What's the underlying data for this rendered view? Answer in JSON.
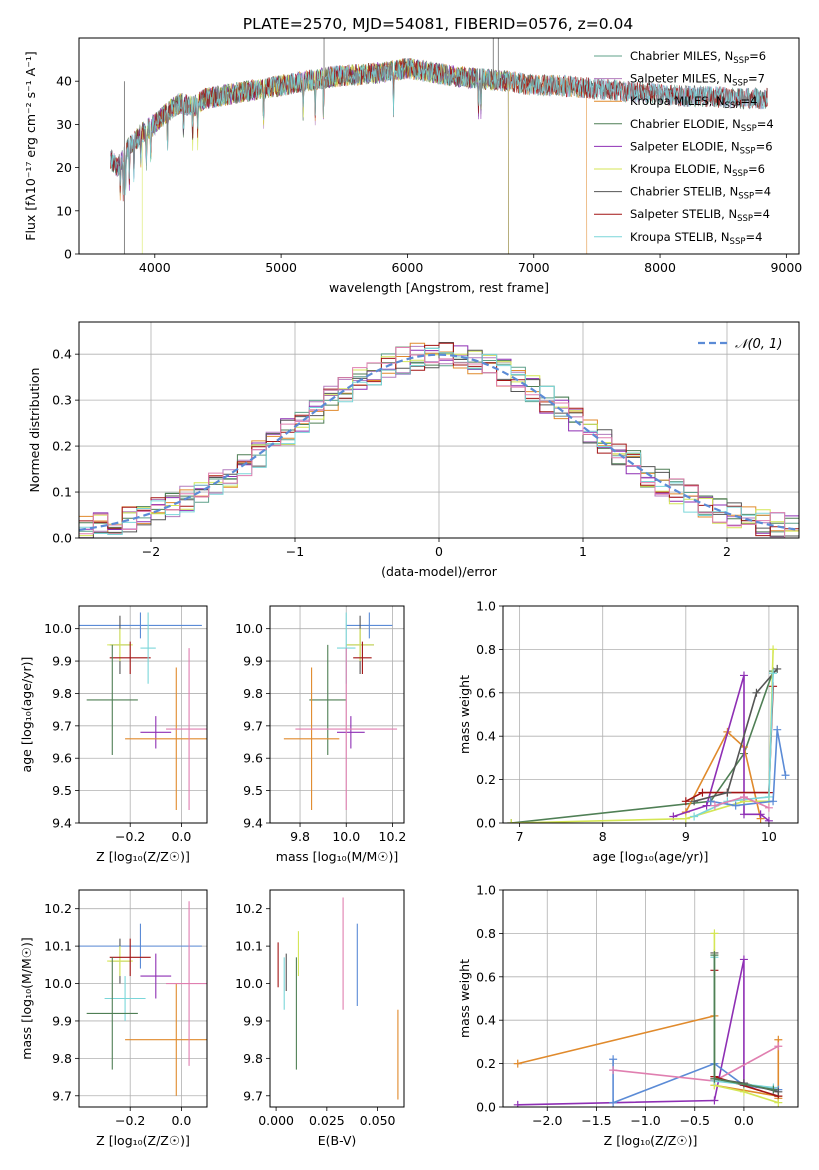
{
  "figure_title": "PLATE=2570, MJD=54081, FIBERID=0576, z=0.04",
  "colors": {
    "chabrier_miles": "#5fa08a",
    "salpeter_miles": "#b37bbd",
    "kroupa_miles": "#e08a2c",
    "chabrier_elodie": "#4f7f55",
    "salpeter_elodie": "#8e2fb4",
    "kroupa_elodie": "#d4e655",
    "chabrier_stelib": "#555555",
    "salpeter_stelib": "#a21414",
    "kroupa_stelib": "#7ad6d9",
    "gaussian": "#5b8bd6",
    "extra_pink": "#e07fb0",
    "extra_blue": "#5b8bd6"
  },
  "chart_data": [
    {
      "id": "spectrum",
      "type": "line",
      "xlabel": "wavelength [Angstrom, rest frame]",
      "ylabel": "Flux [fλ10⁻¹⁷ erg cm⁻² s⁻¹ A⁻¹]",
      "xlim": [
        3400,
        9100
      ],
      "ylim": [
        0,
        50
      ],
      "xticks": [
        "4000",
        "5000",
        "6000",
        "7000",
        "8000",
        "9000"
      ],
      "yticks": [
        "0",
        "10",
        "20",
        "30",
        "40"
      ],
      "legend": [
        {
          "base": "Chabrier MILES, N",
          "sub": "SSP",
          "tail": "=6"
        },
        {
          "base": "Salpeter MILES, N",
          "sub": "SSP",
          "tail": "=7"
        },
        {
          "base": "Kroupa MILES, N",
          "sub": "SSP",
          "tail": "=4"
        },
        {
          "base": "Chabrier ELODIE, N",
          "sub": "SSP",
          "tail": "=4"
        },
        {
          "base": "Salpeter ELODIE, N",
          "sub": "SSP",
          "tail": "=6"
        },
        {
          "base": "Kroupa ELODIE, N",
          "sub": "SSP",
          "tail": "=6"
        },
        {
          "base": "Chabrier STELIB, N",
          "sub": "SSP",
          "tail": "=4"
        },
        {
          "base": "Salpeter STELIB, N",
          "sub": "SSP",
          "tail": "=4"
        },
        {
          "base": "Kroupa STELIB, N",
          "sub": "SSP",
          "tail": "=4"
        }
      ],
      "legend_loc": "right",
      "continuum": {
        "x": [
          3650,
          3700,
          3800,
          3900,
          4000,
          4100,
          4200,
          4300,
          4400,
          4600,
          4800,
          5000,
          5200,
          5400,
          5600,
          5800,
          6000,
          6200,
          6400,
          6600,
          6800,
          7000,
          7200,
          7400,
          7600,
          7800,
          8000,
          8200,
          8400,
          8600,
          8850
        ],
        "y": [
          22,
          20,
          25,
          28,
          30,
          33,
          35,
          34,
          36,
          37,
          38,
          39,
          40,
          41,
          41.5,
          42,
          43,
          42,
          41,
          40.5,
          40,
          39,
          39,
          38.5,
          38,
          37.5,
          37,
          36.5,
          36.5,
          36,
          36
        ]
      },
      "wavelength_ranges": [
        {
          "series": "chabrier_miles",
          "x": [
            3650,
            8850
          ]
        },
        {
          "series": "salpeter_miles",
          "x": [
            3650,
            8850
          ]
        },
        {
          "series": "kroupa_miles",
          "x": [
            3650,
            7420
          ]
        },
        {
          "series": "chabrier_elodie",
          "x": [
            3650,
            6800
          ]
        },
        {
          "series": "salpeter_elodie",
          "x": [
            3650,
            6800
          ]
        },
        {
          "series": "kroupa_elodie",
          "x": [
            3900,
            6800
          ]
        },
        {
          "series": "chabrier_stelib",
          "x": [
            3650,
            8850
          ]
        },
        {
          "series": "salpeter_stelib",
          "x": [
            3650,
            8850
          ]
        },
        {
          "series": "kroupa_stelib",
          "x": [
            3650,
            8850
          ]
        }
      ]
    },
    {
      "id": "residuals",
      "type": "histogram",
      "xlabel": "(data-model)/error",
      "ylabel": "Normed distribution",
      "xlim": [
        -2.5,
        2.5
      ],
      "ylim": [
        0,
        0.47
      ],
      "xticks": [
        "−2",
        "−1",
        "0",
        "1",
        "2"
      ],
      "yticks": [
        "0.0",
        "0.1",
        "0.2",
        "0.3",
        "0.4"
      ],
      "grid": true,
      "legend": "𝒩(0, 1)",
      "legend_loc": "top-right",
      "bin_width": 0.1
    },
    {
      "id": "age_vs_Z",
      "type": "scatter",
      "xlabel": "Z [log₁₀(Z/Z☉)]",
      "ylabel": "age  [log₁₀(age/yr)]",
      "xlim": [
        -0.4,
        0.1
      ],
      "ylim": [
        9.4,
        10.07
      ],
      "xticks": [
        "−0.2",
        "0.0"
      ],
      "yticks": [
        "9.4",
        "9.5",
        "9.6",
        "9.7",
        "9.8",
        "9.9",
        "10.0"
      ],
      "grid": true,
      "points": [
        {
          "series": "extra_blue",
          "x": -0.16,
          "y": 10.01,
          "xerr": 0.24,
          "yerr": 0.04
        },
        {
          "series": "chabrier_stelib",
          "x": -0.24,
          "y": 9.95,
          "xerr": 0.04,
          "yerr": 0.09
        },
        {
          "series": "kroupa_elodie",
          "x": -0.24,
          "y": 9.95,
          "xerr": 0.05,
          "yerr": 0.05
        },
        {
          "series": "salpeter_stelib",
          "x": -0.2,
          "y": 9.91,
          "xerr": 0.08,
          "yerr": 0.05
        },
        {
          "series": "kroupa_stelib",
          "x": -0.13,
          "y": 9.94,
          "xerr": 0.03,
          "yerr": 0.11
        },
        {
          "series": "salpeter_elodie",
          "x": -0.1,
          "y": 9.68,
          "xerr": 0.06,
          "yerr": 0.05
        },
        {
          "series": "chabrier_elodie",
          "x": -0.27,
          "y": 9.78,
          "xerr": 0.1,
          "yerr": 0.17
        },
        {
          "series": "kroupa_miles",
          "x": -0.02,
          "y": 9.66,
          "xerr": 0.2,
          "yerr": 0.22
        },
        {
          "series": "extra_pink",
          "x": 0.03,
          "y": 9.69,
          "xerr": 0.09,
          "yerr": 0.25
        }
      ]
    },
    {
      "id": "age_vs_mass",
      "type": "scatter",
      "xlabel": "mass [log₁₀(M/M☉)]",
      "ylabel": "",
      "xlim": [
        9.67,
        10.25
      ],
      "ylim": [
        9.4,
        10.07
      ],
      "xticks": [
        "9.8",
        "10.0",
        "10.2"
      ],
      "yticks": [
        "9.4",
        "9.5",
        "9.6",
        "9.7",
        "9.8",
        "9.9",
        "10.0"
      ],
      "grid": true,
      "points": [
        {
          "series": "extra_blue",
          "x": 10.1,
          "y": 10.01,
          "xerr": 0.1,
          "yerr": 0.04
        },
        {
          "series": "chabrier_stelib",
          "x": 10.06,
          "y": 9.95,
          "xerr": 0.06,
          "yerr": 0.09
        },
        {
          "series": "kroupa_elodie",
          "x": 10.06,
          "y": 9.95,
          "xerr": 0.06,
          "yerr": 0.05
        },
        {
          "series": "salpeter_stelib",
          "x": 10.07,
          "y": 9.91,
          "xerr": 0.04,
          "yerr": 0.05
        },
        {
          "series": "kroupa_stelib",
          "x": 10.0,
          "y": 9.94,
          "xerr": 0.04,
          "yerr": 0.11
        },
        {
          "series": "salpeter_elodie",
          "x": 10.02,
          "y": 9.68,
          "xerr": 0.06,
          "yerr": 0.05
        },
        {
          "series": "chabrier_elodie",
          "x": 9.92,
          "y": 9.78,
          "xerr": 0.08,
          "yerr": 0.17
        },
        {
          "series": "kroupa_miles",
          "x": 9.85,
          "y": 9.66,
          "xerr": 0.12,
          "yerr": 0.22
        },
        {
          "series": "extra_pink",
          "x": 10.0,
          "y": 9.69,
          "xerr": 0.22,
          "yerr": 0.25
        }
      ]
    },
    {
      "id": "mass_weight_vs_age",
      "type": "line",
      "xlabel": "age  [log₁₀(age/yr)]",
      "ylabel": "mass weight",
      "xlim": [
        6.8,
        10.35
      ],
      "ylim": [
        0,
        1.0
      ],
      "xticks": [
        "7",
        "8",
        "9",
        "10"
      ],
      "yticks": [
        "0.0",
        "0.2",
        "0.4",
        "0.6",
        "0.8",
        "1.0"
      ],
      "grid": true,
      "series": [
        {
          "series": "chabrier_elodie",
          "x": [
            6.9,
            9.3,
            9.7,
            10.05
          ],
          "y": [
            0.0,
            0.1,
            0.32,
            0.7
          ]
        },
        {
          "series": "kroupa_miles",
          "x": [
            9.0,
            9.5,
            9.7,
            9.9
          ],
          "y": [
            0.05,
            0.42,
            0.35,
            0.02
          ]
        },
        {
          "series": "salpeter_elodie",
          "x": [
            8.85,
            9.25,
            9.7,
            9.7,
            9.9,
            10.0
          ],
          "y": [
            0.03,
            0.08,
            0.68,
            0.04,
            0.04,
            0.01
          ]
        },
        {
          "series": "salpeter_stelib",
          "x": [
            9.0,
            9.2,
            9.5,
            10.0,
            10.05
          ],
          "y": [
            0.1,
            0.14,
            0.14,
            0.14,
            0.63
          ]
        },
        {
          "series": "chabrier_stelib",
          "x": [
            9.1,
            9.5,
            9.85,
            10.1
          ],
          "y": [
            0.1,
            0.14,
            0.6,
            0.71
          ]
        },
        {
          "series": "kroupa_elodie",
          "x": [
            6.9,
            9.0,
            9.7,
            10.0,
            10.05
          ],
          "y": [
            0.0,
            0.02,
            0.1,
            0.1,
            0.8
          ]
        },
        {
          "series": "kroupa_stelib",
          "x": [
            9.1,
            9.5,
            10.0,
            10.05
          ],
          "y": [
            0.03,
            0.1,
            0.12,
            0.69
          ]
        },
        {
          "series": "extra_blue",
          "x": [
            9.3,
            9.6,
            10.05,
            10.1,
            10.2
          ],
          "y": [
            0.1,
            0.08,
            0.1,
            0.43,
            0.22
          ]
        },
        {
          "series": "extra_pink",
          "x": [
            9.35,
            9.7,
            10.0
          ],
          "y": [
            0.08,
            0.12,
            0.07
          ]
        }
      ]
    },
    {
      "id": "mass_vs_Z",
      "type": "scatter",
      "xlabel": "Z [log₁₀(Z/Z☉)]",
      "ylabel": "mass [log₁₀(M/M☉)]",
      "xlim": [
        -0.4,
        0.1
      ],
      "ylim": [
        9.67,
        10.25
      ],
      "xticks": [
        "−0.2",
        "0.0"
      ],
      "yticks": [
        "9.7",
        "9.8",
        "9.9",
        "10.0",
        "10.1",
        "10.2"
      ],
      "grid": true,
      "points": [
        {
          "series": "extra_blue",
          "x": -0.16,
          "y": 10.1,
          "xerr": 0.24,
          "yerr": 0.06
        },
        {
          "series": "chabrier_stelib",
          "x": -0.24,
          "y": 10.06,
          "xerr": 0.04,
          "yerr": 0.06
        },
        {
          "series": "kroupa_elodie",
          "x": -0.24,
          "y": 10.06,
          "xerr": 0.05,
          "yerr": 0.04
        },
        {
          "series": "salpeter_stelib",
          "x": -0.2,
          "y": 10.07,
          "xerr": 0.08,
          "yerr": 0.05
        },
        {
          "series": "kroupa_stelib",
          "x": -0.22,
          "y": 9.96,
          "xerr": 0.08,
          "yerr": 0.06
        },
        {
          "series": "salpeter_elodie",
          "x": -0.1,
          "y": 10.02,
          "xerr": 0.06,
          "yerr": 0.06
        },
        {
          "series": "chabrier_elodie",
          "x": -0.27,
          "y": 9.92,
          "xerr": 0.1,
          "yerr": 0.15
        },
        {
          "series": "kroupa_miles",
          "x": -0.02,
          "y": 9.85,
          "xerr": 0.2,
          "yerr": 0.15
        },
        {
          "series": "extra_pink",
          "x": 0.03,
          "y": 10.0,
          "xerr": 0.09,
          "yerr": 0.22
        }
      ]
    },
    {
      "id": "mass_vs_ebv",
      "type": "scatter",
      "xlabel": "E(B-V)",
      "ylabel": "",
      "xlim": [
        -0.003,
        0.063
      ],
      "ylim": [
        9.67,
        10.25
      ],
      "xticks": [
        "0.000",
        "0.025",
        "0.050"
      ],
      "yticks": [
        "9.7",
        "9.8",
        "9.9",
        "10.0",
        "10.1",
        "10.2"
      ],
      "grid": false,
      "points": [
        {
          "series": "salpeter_stelib",
          "x": 0.001,
          "y": 10.05,
          "yerr": 0.06
        },
        {
          "series": "chabrier_stelib",
          "x": 0.005,
          "y": 10.03,
          "yerr": 0.05
        },
        {
          "series": "kroupa_stelib",
          "x": 0.004,
          "y": 10.0,
          "yerr": 0.07
        },
        {
          "series": "chabrier_elodie",
          "x": 0.01,
          "y": 9.92,
          "yerr": 0.15
        },
        {
          "series": "kroupa_elodie",
          "x": 0.011,
          "y": 10.08,
          "yerr": 0.06
        },
        {
          "series": "extra_pink",
          "x": 0.033,
          "y": 10.08,
          "yerr": 0.15
        },
        {
          "series": "extra_blue",
          "x": 0.04,
          "y": 10.05,
          "yerr": 0.11
        },
        {
          "series": "kroupa_miles",
          "x": 0.06,
          "y": 9.81,
          "yerr": 0.12
        }
      ]
    },
    {
      "id": "mass_weight_vs_Z",
      "type": "line",
      "xlabel": "Z [log₁₀(Z/Z☉)]",
      "ylabel": "mass weight",
      "xlim": [
        -2.45,
        0.55
      ],
      "ylim": [
        0,
        1.0
      ],
      "xticks": [
        "−2.0",
        "−1.5",
        "−1.0",
        "−0.5",
        "0.0"
      ],
      "yticks": [
        "0.0",
        "0.2",
        "0.4",
        "0.6",
        "0.8",
        "1.0"
      ],
      "grid": true,
      "series": [
        {
          "series": "kroupa_miles",
          "x": [
            -2.3,
            -0.3,
            -0.3,
            0.35,
            0.35,
            0.35
          ],
          "y": [
            0.2,
            0.42,
            0.1,
            0.05,
            0.31,
            0.04
          ]
        },
        {
          "series": "salpeter_elodie",
          "x": [
            -2.3,
            -0.3,
            0.0,
            0.0,
            0.3
          ],
          "y": [
            0.01,
            0.03,
            0.68,
            0.1,
            0.08
          ]
        },
        {
          "series": "extra_blue",
          "x": [
            -1.33,
            -1.33,
            -0.3,
            0.0,
            0.35
          ],
          "y": [
            0.22,
            0.02,
            0.2,
            0.1,
            0.08
          ]
        },
        {
          "series": "extra_pink",
          "x": [
            -1.33,
            -0.3,
            0.35
          ],
          "y": [
            0.17,
            0.12,
            0.28
          ]
        },
        {
          "series": "salpeter_stelib",
          "x": [
            -0.3,
            -0.3,
            -0.3,
            0.35
          ],
          "y": [
            0.63,
            0.14,
            0.14,
            0.05
          ]
        },
        {
          "series": "chabrier_stelib",
          "x": [
            -0.3,
            -0.3,
            0.0,
            0.35
          ],
          "y": [
            0.71,
            0.13,
            0.11,
            0.07
          ]
        },
        {
          "series": "kroupa_elodie",
          "x": [
            -0.3,
            -0.3,
            0.0,
            0.35
          ],
          "y": [
            0.8,
            0.1,
            0.07,
            0.02
          ]
        },
        {
          "series": "kroupa_stelib",
          "x": [
            -0.3,
            -0.3,
            0.3
          ],
          "y": [
            0.69,
            0.12,
            0.09
          ]
        },
        {
          "series": "chabrier_elodie",
          "x": [
            -0.3,
            -0.3,
            0.3
          ],
          "y": [
            0.7,
            0.13,
            0.08
          ]
        }
      ]
    }
  ]
}
